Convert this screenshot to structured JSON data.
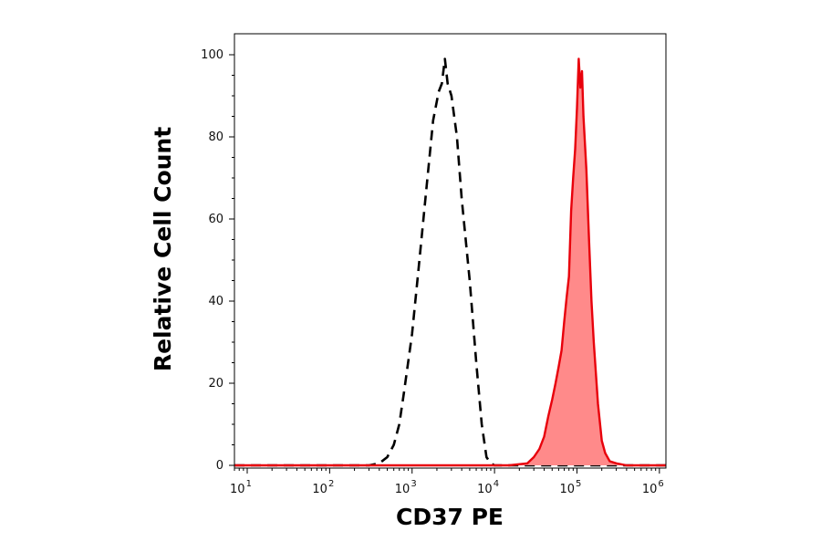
{
  "chart_data": {
    "type": "area",
    "xlabel": "CD37 PE",
    "ylabel": "Relative Cell Count",
    "x_scale": "log",
    "xlim": [
      7,
      1200000
    ],
    "ylim": [
      0,
      100
    ],
    "x_ticks": [
      {
        "value": 10,
        "base": "10",
        "exp": "1"
      },
      {
        "value": 100,
        "base": "10",
        "exp": "2"
      },
      {
        "value": 1000,
        "base": "10",
        "exp": "3"
      },
      {
        "value": 10000,
        "base": "10",
        "exp": "4"
      },
      {
        "value": 100000,
        "base": "10",
        "exp": "5"
      },
      {
        "value": 1000000,
        "base": "10",
        "exp": "6"
      }
    ],
    "y_ticks": [
      0,
      20,
      40,
      60,
      80,
      100
    ],
    "grid": false,
    "legend": "none",
    "series": [
      {
        "style": "dashed",
        "color": "#000000",
        "fill": "none",
        "x": [
          7,
          300,
          400,
          500,
          600,
          700,
          800,
          1000,
          1200,
          1500,
          1800,
          2100,
          2300,
          2500,
          2700,
          3000,
          3500,
          4000,
          5000,
          6000,
          7000,
          8000,
          9000,
          10000,
          12000,
          15000,
          1200000
        ],
        "values": [
          0,
          0,
          0.5,
          2,
          5,
          10,
          18,
          32,
          48,
          68,
          84,
          91,
          93,
          99,
          93,
          90,
          80,
          65,
          45,
          25,
          10,
          2,
          0.5,
          0,
          0,
          0,
          0
        ]
      },
      {
        "style": "solid",
        "color": "#e8000b",
        "fill": "#ff8a8a",
        "x": [
          7,
          15000,
          25000,
          30000,
          35000,
          40000,
          45000,
          50000,
          55000,
          60000,
          65000,
          70000,
          75000,
          80000,
          85000,
          90000,
          95000,
          100000,
          105000,
          110000,
          115000,
          120000,
          130000,
          140000,
          150000,
          160000,
          180000,
          200000,
          220000,
          250000,
          300000,
          400000,
          1200000
        ],
        "values": [
          0,
          0,
          0.5,
          2,
          4,
          7,
          12,
          16,
          20,
          24,
          28,
          35,
          41,
          46,
          62,
          70,
          77,
          87,
          99,
          92,
          96,
          85,
          72,
          55,
          40,
          30,
          15,
          6,
          3,
          1,
          0.5,
          0,
          0
        ]
      }
    ]
  }
}
